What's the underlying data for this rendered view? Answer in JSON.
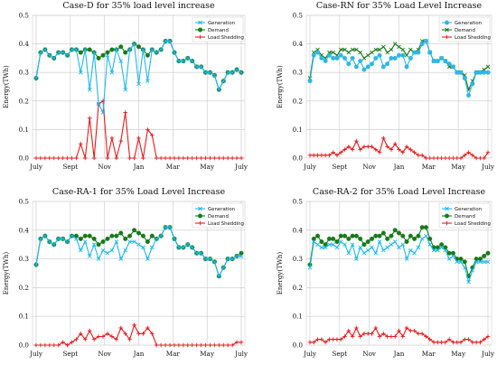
{
  "colors": {
    "generation_case_d_ra": "#1fb7ee",
    "generation_case_rn": "#2fb6e6",
    "demand": "#1a7a1a",
    "load_shedding": "#e41a1c",
    "grid": "#c8c8c8"
  },
  "chart_data": [
    {
      "type": "line",
      "title": "Case-D for 35% load level increase",
      "ylabel": "Energy(TWh)",
      "xlabel": "",
      "ylim": [
        0,
        0.5
      ],
      "y_ticks": [
        "0.0",
        "0.1",
        "0.2",
        "0.3",
        "0.4",
        "0.5"
      ],
      "x_ticks": [
        "July",
        "Sept",
        "Nov",
        "Jan",
        "Mar",
        "May",
        "July"
      ],
      "grid": true,
      "legend_position": "top-right",
      "series": [
        {
          "name": "Generation",
          "color": "#1fb7ee",
          "marker": "x",
          "values": [
            0.28,
            0.37,
            0.38,
            0.36,
            0.35,
            0.37,
            0.37,
            0.36,
            0.38,
            0.38,
            0.3,
            0.38,
            0.24,
            0.37,
            0.19,
            0.16,
            0.36,
            0.3,
            0.38,
            0.34,
            0.24,
            0.38,
            0.4,
            0.26,
            0.38,
            0.27,
            0.38,
            0.37,
            0.38,
            0.41,
            0.41,
            0.37,
            0.34,
            0.34,
            0.35,
            0.34,
            0.32,
            0.32,
            0.3,
            0.3,
            0.29,
            0.24,
            0.27,
            0.3,
            0.3,
            0.31,
            0.3
          ]
        },
        {
          "name": "Demand",
          "color": "#1a7a1a",
          "marker": "o",
          "values": [
            0.28,
            0.37,
            0.38,
            0.36,
            0.35,
            0.37,
            0.37,
            0.36,
            0.38,
            0.38,
            0.37,
            0.38,
            0.38,
            0.37,
            0.35,
            0.36,
            0.37,
            0.38,
            0.38,
            0.39,
            0.37,
            0.38,
            0.4,
            0.39,
            0.38,
            0.36,
            0.38,
            0.37,
            0.38,
            0.41,
            0.41,
            0.37,
            0.34,
            0.34,
            0.35,
            0.34,
            0.32,
            0.32,
            0.3,
            0.3,
            0.29,
            0.24,
            0.27,
            0.3,
            0.3,
            0.31,
            0.3
          ]
        },
        {
          "name": "Load Shedding",
          "color": "#e41a1c",
          "marker": "+",
          "values": [
            0,
            0,
            0,
            0,
            0,
            0,
            0,
            0,
            0,
            0,
            0.05,
            0,
            0.14,
            0,
            0.19,
            0.2,
            0,
            0.07,
            0,
            0.06,
            0.16,
            0,
            0,
            0.07,
            0,
            0.1,
            0.08,
            0,
            0,
            0,
            0,
            0,
            0,
            0,
            0,
            0,
            0,
            0,
            0,
            0,
            0,
            0,
            0,
            0,
            0,
            0,
            0
          ]
        }
      ]
    },
    {
      "type": "line",
      "title": "Case-RN for 35% Load Level Increase",
      "ylabel": "Energy(TWh)",
      "xlabel": "",
      "ylim": [
        0,
        0.5
      ],
      "y_ticks": [
        "0.0",
        "0.1",
        "0.2",
        "0.3",
        "0.4",
        "0.5"
      ],
      "x_ticks": [
        "July",
        "Sept",
        "Nov",
        "Jan",
        "Mar",
        "May",
        "July"
      ],
      "grid": true,
      "legend_position": "top-right",
      "series": [
        {
          "name": "Generation",
          "color": "#2fb6e6",
          "marker": "o",
          "values": [
            0.27,
            0.36,
            0.37,
            0.35,
            0.34,
            0.36,
            0.35,
            0.35,
            0.36,
            0.35,
            0.33,
            0.35,
            0.32,
            0.34,
            0.31,
            0.32,
            0.33,
            0.35,
            0.36,
            0.32,
            0.33,
            0.35,
            0.35,
            0.36,
            0.36,
            0.32,
            0.35,
            0.37,
            0.37,
            0.4,
            0.41,
            0.37,
            0.34,
            0.34,
            0.35,
            0.34,
            0.33,
            0.32,
            0.3,
            0.3,
            0.28,
            0.22,
            0.26,
            0.3,
            0.3,
            0.3,
            0.3
          ]
        },
        {
          "name": "Demand",
          "color": "#1a7a1a",
          "marker": "x",
          "values": [
            0.28,
            0.37,
            0.38,
            0.36,
            0.35,
            0.37,
            0.37,
            0.36,
            0.38,
            0.38,
            0.37,
            0.38,
            0.38,
            0.37,
            0.35,
            0.36,
            0.37,
            0.38,
            0.38,
            0.39,
            0.37,
            0.38,
            0.4,
            0.39,
            0.38,
            0.36,
            0.38,
            0.37,
            0.38,
            0.41,
            0.41,
            0.37,
            0.34,
            0.34,
            0.35,
            0.34,
            0.32,
            0.32,
            0.3,
            0.3,
            0.29,
            0.24,
            0.27,
            0.3,
            0.3,
            0.31,
            0.32
          ]
        },
        {
          "name": "Load Shedding",
          "color": "#e41a1c",
          "marker": "+",
          "values": [
            0.01,
            0.01,
            0.01,
            0.01,
            0.01,
            0.01,
            0.02,
            0.01,
            0.02,
            0.03,
            0.04,
            0.03,
            0.06,
            0.03,
            0.04,
            0.04,
            0.04,
            0.03,
            0.02,
            0.07,
            0.04,
            0.03,
            0.05,
            0.03,
            0.02,
            0.04,
            0.03,
            0.02,
            0.01,
            0.01,
            0.0,
            0.0,
            0.0,
            0.0,
            0.0,
            0.0,
            0.0,
            0.0,
            0.0,
            0.0,
            0.01,
            0.02,
            0.01,
            0.0,
            0.0,
            0.0,
            0.02
          ]
        }
      ]
    },
    {
      "type": "line",
      "title": "Case-RA-1 for 35% Load Level Increase",
      "ylabel": "Energy(TWh)",
      "xlabel": "",
      "ylim": [
        0,
        0.5
      ],
      "y_ticks": [
        "0.0",
        "0.1",
        "0.2",
        "0.3",
        "0.4",
        "0.5"
      ],
      "x_ticks": [
        "July",
        "Sept",
        "Nov",
        "Jan",
        "Mar",
        "May",
        "July"
      ],
      "grid": true,
      "legend_position": "top-right",
      "series": [
        {
          "name": "Generation",
          "color": "#1fb7ee",
          "marker": "x",
          "values": [
            0.28,
            0.37,
            0.38,
            0.36,
            0.35,
            0.37,
            0.37,
            0.36,
            0.38,
            0.37,
            0.33,
            0.36,
            0.31,
            0.35,
            0.3,
            0.33,
            0.32,
            0.33,
            0.36,
            0.3,
            0.33,
            0.36,
            0.36,
            0.35,
            0.34,
            0.3,
            0.34,
            0.37,
            0.38,
            0.41,
            0.41,
            0.37,
            0.34,
            0.34,
            0.35,
            0.34,
            0.32,
            0.32,
            0.3,
            0.3,
            0.29,
            0.24,
            0.27,
            0.3,
            0.3,
            0.31,
            0.31
          ]
        },
        {
          "name": "Demand",
          "color": "#1a7a1a",
          "marker": "o",
          "values": [
            0.28,
            0.37,
            0.38,
            0.36,
            0.35,
            0.37,
            0.37,
            0.36,
            0.38,
            0.38,
            0.37,
            0.38,
            0.38,
            0.37,
            0.35,
            0.36,
            0.37,
            0.38,
            0.38,
            0.39,
            0.37,
            0.38,
            0.4,
            0.39,
            0.38,
            0.36,
            0.38,
            0.37,
            0.38,
            0.41,
            0.41,
            0.37,
            0.34,
            0.34,
            0.35,
            0.34,
            0.32,
            0.32,
            0.3,
            0.3,
            0.29,
            0.24,
            0.27,
            0.3,
            0.3,
            0.31,
            0.32
          ]
        },
        {
          "name": "Load Shedding",
          "color": "#e41a1c",
          "marker": "+",
          "values": [
            0.0,
            0.0,
            0.0,
            0.0,
            0.0,
            0.0,
            0.01,
            0.0,
            0.01,
            0.02,
            0.04,
            0.02,
            0.05,
            0.02,
            0.03,
            0.03,
            0.04,
            0.03,
            0.02,
            0.06,
            0.04,
            0.02,
            0.07,
            0.04,
            0.04,
            0.06,
            0.04,
            0.0,
            0.0,
            0.0,
            0.0,
            0.0,
            0.0,
            0.0,
            0.0,
            0.0,
            0.0,
            0.0,
            0.0,
            0.0,
            0.0,
            0.0,
            0.0,
            0.0,
            0.0,
            0.01,
            0.01
          ]
        }
      ]
    },
    {
      "type": "line",
      "title": "Case-RA-2 for 35% Load Level Increase",
      "ylabel": "Energy(TWh)",
      "xlabel": "",
      "ylim": [
        0,
        0.5
      ],
      "y_ticks": [
        "0.0",
        "0.1",
        "0.2",
        "0.3",
        "0.4",
        "0.5"
      ],
      "x_ticks": [
        "July",
        "Sept",
        "Nov",
        "Jan",
        "Mar",
        "May",
        "July"
      ],
      "grid": true,
      "legend_position": "top-right",
      "series": [
        {
          "name": "Generation",
          "color": "#1fb7ee",
          "marker": "x",
          "values": [
            0.27,
            0.36,
            0.35,
            0.34,
            0.34,
            0.35,
            0.35,
            0.34,
            0.36,
            0.35,
            0.32,
            0.35,
            0.3,
            0.34,
            0.32,
            0.33,
            0.34,
            0.32,
            0.36,
            0.33,
            0.34,
            0.35,
            0.36,
            0.34,
            0.35,
            0.3,
            0.33,
            0.32,
            0.34,
            0.37,
            0.38,
            0.35,
            0.33,
            0.33,
            0.34,
            0.33,
            0.3,
            0.31,
            0.29,
            0.29,
            0.27,
            0.22,
            0.26,
            0.29,
            0.29,
            0.29,
            0.29
          ]
        },
        {
          "name": "Demand",
          "color": "#1a7a1a",
          "marker": "o",
          "values": [
            0.28,
            0.37,
            0.38,
            0.36,
            0.35,
            0.37,
            0.37,
            0.36,
            0.38,
            0.38,
            0.37,
            0.38,
            0.38,
            0.37,
            0.35,
            0.36,
            0.37,
            0.38,
            0.38,
            0.39,
            0.37,
            0.38,
            0.4,
            0.39,
            0.38,
            0.36,
            0.38,
            0.37,
            0.38,
            0.41,
            0.41,
            0.37,
            0.34,
            0.34,
            0.35,
            0.34,
            0.32,
            0.32,
            0.3,
            0.3,
            0.29,
            0.24,
            0.27,
            0.3,
            0.3,
            0.31,
            0.32
          ]
        },
        {
          "name": "Load Shedding",
          "color": "#e41a1c",
          "marker": "+",
          "values": [
            0.01,
            0.01,
            0.02,
            0.02,
            0.01,
            0.02,
            0.02,
            0.02,
            0.02,
            0.03,
            0.05,
            0.03,
            0.06,
            0.03,
            0.04,
            0.04,
            0.04,
            0.06,
            0.03,
            0.04,
            0.03,
            0.03,
            0.03,
            0.05,
            0.03,
            0.06,
            0.05,
            0.05,
            0.04,
            0.04,
            0.03,
            0.02,
            0.01,
            0.01,
            0.01,
            0.01,
            0.02,
            0.01,
            0.01,
            0.01,
            0.02,
            0.02,
            0.01,
            0.01,
            0.01,
            0.02,
            0.03
          ]
        }
      ]
    }
  ]
}
